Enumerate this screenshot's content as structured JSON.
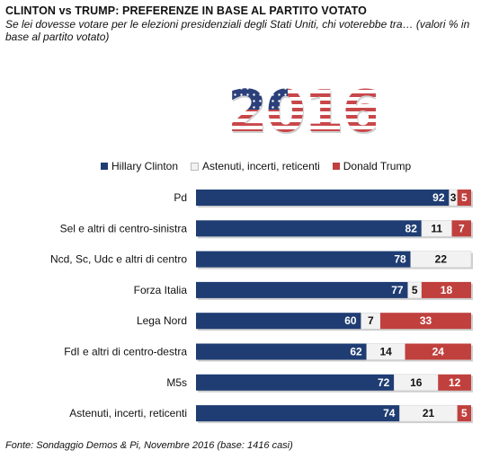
{
  "title": "CLINTON vs TRUMP: PREFERENZE IN BASE AL PARTITO VOTATO",
  "subtitle": "Se lei dovesse votare per le elezioni presidenziali degli Stati Uniti, chi voterebbe tra… (valori % in base al partito votato)",
  "emblem_text": "2016",
  "source": "Fonte: Sondaggio Demos & Pi, Novembre 2016 (base: 1416 casi)",
  "colors": {
    "clinton": "#1f3d73",
    "astenuti": "#f2f2f2",
    "trump": "#c0403d",
    "flag_red": "#c8474a",
    "flag_blue": "#2b3f7a"
  },
  "chart_data": {
    "type": "bar",
    "orientation": "horizontal",
    "stacked": true,
    "categories": [
      "Pd",
      "Sel e altri di centro-sinistra",
      "Ncd, Sc, Udc e altri di centro",
      "Forza Italia",
      "Lega Nord",
      "FdI e altri di centro-destra",
      "M5s",
      "Astenuti, incerti, reticenti"
    ],
    "series": [
      {
        "name": "Hillary Clinton",
        "values": [
          92,
          82,
          78,
          77,
          60,
          62,
          72,
          74
        ]
      },
      {
        "name": "Astenuti, incerti, reticenti",
        "values": [
          3,
          11,
          22,
          5,
          7,
          14,
          16,
          21
        ]
      },
      {
        "name": "Donald Trump",
        "values": [
          5,
          7,
          0,
          18,
          33,
          24,
          12,
          5
        ]
      }
    ],
    "xlim": [
      0,
      100
    ],
    "legend_position": "top",
    "grid": false
  }
}
